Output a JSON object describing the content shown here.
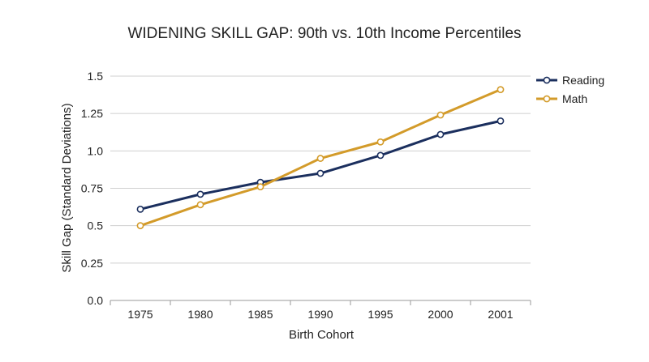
{
  "chart_data": {
    "type": "line",
    "title": "WIDENING SKILL GAP: 90th vs. 10th Income Percentiles",
    "xlabel": "Birth Cohort",
    "ylabel": "Skill Gap (Standard Deviations)",
    "categories": [
      "1975",
      "1980",
      "1985",
      "1990",
      "1995",
      "2000",
      "2001"
    ],
    "y_ticks": [
      "0.0",
      "0.25",
      "0.5",
      "0.75",
      "1.0",
      "1.25",
      "1.5"
    ],
    "ylim": [
      0,
      1.5
    ],
    "grid": true,
    "legend_position": "top-right",
    "series": [
      {
        "name": "Reading",
        "color": "#1b2f5e",
        "values": [
          0.61,
          0.71,
          0.79,
          0.85,
          0.97,
          1.11,
          1.2
        ]
      },
      {
        "name": "Math",
        "color": "#d39b2a",
        "values": [
          0.5,
          0.64,
          0.76,
          0.95,
          1.06,
          1.24,
          1.41
        ]
      }
    ]
  }
}
